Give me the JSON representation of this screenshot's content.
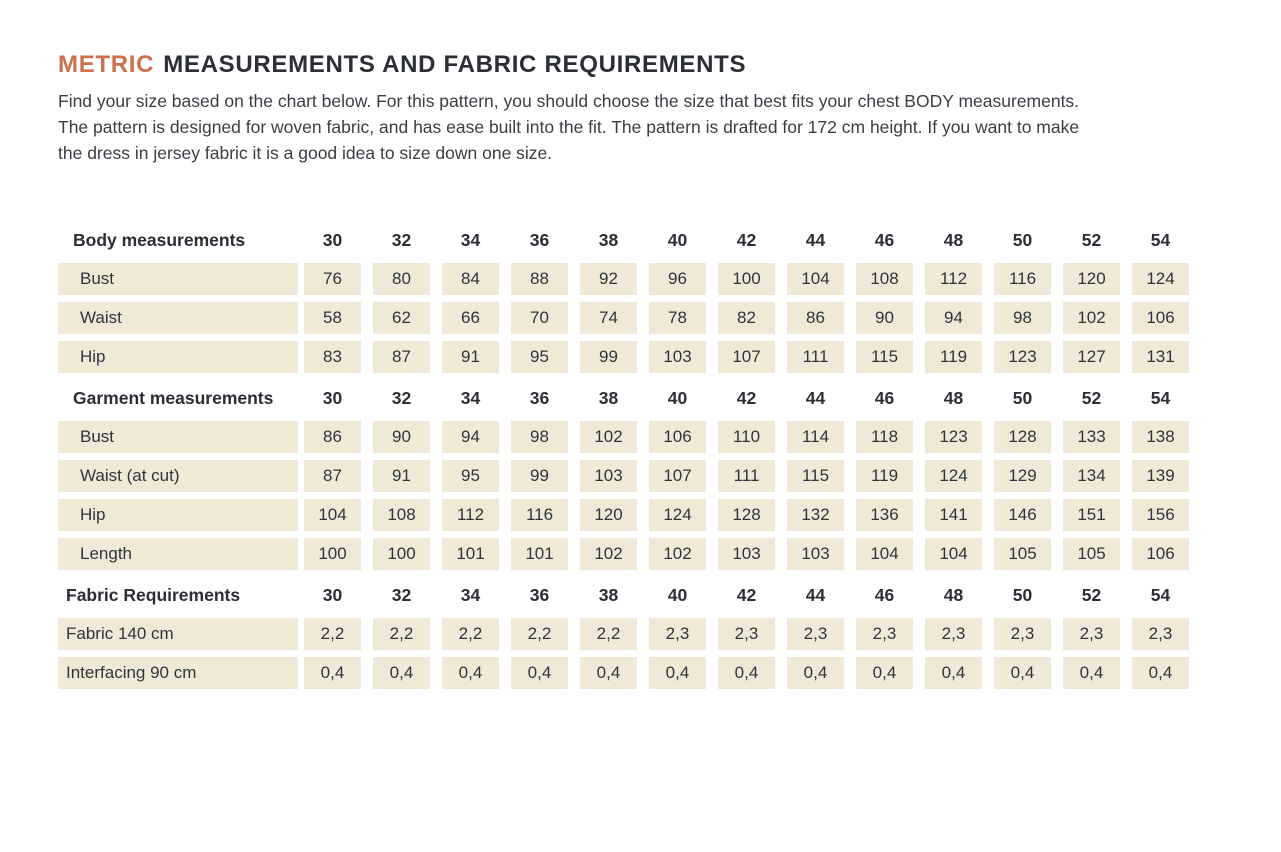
{
  "page": {
    "title": {
      "highlight": "METRIC",
      "rest": "MEASUREMENTS AND FABRIC REQUIREMENTS"
    },
    "intro_lines": [
      "Find your size based on the chart below. For this pattern, you should choose the size that best fits your chest BODY measurements.",
      "The pattern is designed for woven fabric, and has ease built into the fit. The pattern is drafted for 172 cm height. If you want to make",
      "the dress in jersey fabric it is a good idea to size down one size."
    ]
  },
  "colors": {
    "accent_orange": "#cc7050",
    "cell_beige": "#f1e9d7",
    "text_dark": "#2b2f35"
  },
  "table": {
    "sizes": [
      "30",
      "32",
      "34",
      "36",
      "38",
      "40",
      "42",
      "44",
      "46",
      "48",
      "50",
      "52",
      "54"
    ],
    "sections": [
      {
        "header": "Body measurements",
        "rows": [
          {
            "label": "Bust",
            "values": [
              "76",
              "80",
              "84",
              "88",
              "92",
              "96",
              "100",
              "104",
              "108",
              "112",
              "116",
              "120",
              "124"
            ]
          },
          {
            "label": "Waist",
            "values": [
              "58",
              "62",
              "66",
              "70",
              "74",
              "78",
              "82",
              "86",
              "90",
              "94",
              "98",
              "102",
              "106"
            ]
          },
          {
            "label": "Hip",
            "values": [
              "83",
              "87",
              "91",
              "95",
              "99",
              "103",
              "107",
              "111",
              "115",
              "119",
              "123",
              "127",
              "131"
            ]
          }
        ]
      },
      {
        "header": "Garment measurements",
        "rows": [
          {
            "label": "Bust",
            "values": [
              "86",
              "90",
              "94",
              "98",
              "102",
              "106",
              "110",
              "114",
              "118",
              "123",
              "128",
              "133",
              "138"
            ]
          },
          {
            "label": "Waist  (at cut)",
            "values": [
              "87",
              "91",
              "95",
              "99",
              "103",
              "107",
              "111",
              "115",
              "119",
              "124",
              "129",
              "134",
              "139"
            ]
          },
          {
            "label": "Hip",
            "values": [
              "104",
              "108",
              "112",
              "116",
              "120",
              "124",
              "128",
              "132",
              "136",
              "141",
              "146",
              "151",
              "156"
            ]
          },
          {
            "label": "Length",
            "values": [
              "100",
              "100",
              "101",
              "101",
              "102",
              "102",
              "103",
              "103",
              "104",
              "104",
              "105",
              "105",
              "106"
            ]
          }
        ]
      },
      {
        "header": "Fabric Requirements",
        "rows": [
          {
            "label": "Fabric 140 cm",
            "values": [
              "2,2",
              "2,2",
              "2,2",
              "2,2",
              "2,2",
              "2,3",
              "2,3",
              "2,3",
              "2,3",
              "2,3",
              "2,3",
              "2,3",
              "2,3"
            ]
          },
          {
            "label": "Interfacing 90 cm",
            "values": [
              "0,4",
              "0,4",
              "0,4",
              "0,4",
              "0,4",
              "0,4",
              "0,4",
              "0,4",
              "0,4",
              "0,4",
              "0,4",
              "0,4",
              "0,4"
            ]
          }
        ]
      }
    ]
  }
}
